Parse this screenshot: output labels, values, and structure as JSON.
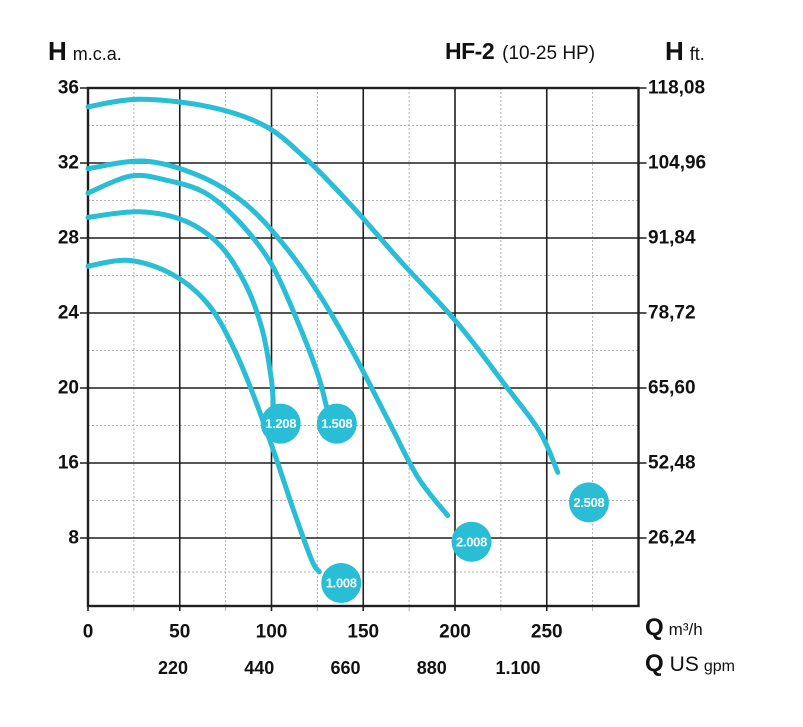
{
  "header": {
    "left_symbol": "H",
    "left_unit": "m.c.a.",
    "title": "HF-2",
    "title_sub": "(10-25 HP)",
    "right_symbol": "H",
    "right_unit": "ft."
  },
  "axes": {
    "head_mca": {
      "symbol": "H",
      "unit": "m.c.a.",
      "ticks": [
        "36",
        "32",
        "28",
        "24",
        "20",
        "16",
        "8"
      ]
    },
    "head_ft": {
      "symbol": "H",
      "unit": "ft.",
      "ticks": [
        "118,08",
        "104,96",
        "91,84",
        "78,72",
        "65,60",
        "52,48",
        "26,24"
      ]
    },
    "flow_m3h": {
      "symbol": "Q",
      "unit": "m³/h",
      "ticks": [
        "0",
        "50",
        "100",
        "150",
        "200",
        "250"
      ]
    },
    "flow_gpm": {
      "symbol": "Q",
      "unit_main": "US",
      "unit_sub": "gpm",
      "ticks": [
        "220",
        "440",
        "660",
        "880",
        "1.100"
      ]
    }
  },
  "chart_data": {
    "type": "line",
    "title": "HF-2 (10-25 HP)",
    "xlabel": "Q m³/h",
    "ylabel": "H m.c.a.",
    "x_range": [
      0,
      300
    ],
    "x_major_step": 50,
    "y_tick_labels": [
      36,
      32,
      28,
      24,
      20,
      16,
      8
    ],
    "grid": "major+minor",
    "legend_position": "badges-on-curves",
    "colors": {
      "curve": "#2abdd6",
      "badge": "#2abdd6",
      "badge_text": "#ffffff",
      "grid_major": "#1f1f1f",
      "grid_minor": "#b3b3b3",
      "text": "#111111"
    },
    "series": [
      {
        "name": "2.508",
        "points": [
          [
            0,
            35.0
          ],
          [
            28,
            35.4
          ],
          [
            66,
            35.0
          ],
          [
            96,
            34.0
          ],
          [
            118,
            32.3
          ],
          [
            143,
            29.8
          ],
          [
            170,
            26.8
          ],
          [
            201,
            23.5
          ],
          [
            227,
            20.2
          ],
          [
            246,
            17.7
          ],
          [
            256,
            15.5
          ]
        ],
        "badge_at": [
          273,
          13.9
        ]
      },
      {
        "name": "2.008",
        "points": [
          [
            0,
            31.7
          ],
          [
            31,
            32.1
          ],
          [
            61,
            31.3
          ],
          [
            86,
            29.8
          ],
          [
            107,
            27.6
          ],
          [
            126,
            25.0
          ],
          [
            145,
            21.8
          ],
          [
            165,
            18.0
          ],
          [
            180,
            15.2
          ],
          [
            196,
            13.2
          ]
        ],
        "badge_at": [
          209,
          11.8
        ]
      },
      {
        "name": "1.508",
        "points": [
          [
            0,
            30.4
          ],
          [
            23,
            31.3
          ],
          [
            42,
            31.1
          ],
          [
            64,
            30.4
          ],
          [
            83,
            28.8
          ],
          [
            100,
            26.6
          ],
          [
            114,
            23.6
          ],
          [
            125,
            20.8
          ],
          [
            130,
            19.0
          ]
        ],
        "badge_at": [
          135.6,
          18.1
        ]
      },
      {
        "name": "1.208",
        "points": [
          [
            0,
            29.1
          ],
          [
            28,
            29.4
          ],
          [
            53,
            28.9
          ],
          [
            72,
            27.6
          ],
          [
            86,
            25.5
          ],
          [
            95,
            23.1
          ],
          [
            100,
            20.4
          ],
          [
            101,
            19.0
          ]
        ],
        "badge_at": [
          105,
          18.1
        ]
      },
      {
        "name": "1.008",
        "points": [
          [
            0,
            26.5
          ],
          [
            23,
            26.8
          ],
          [
            47,
            26.0
          ],
          [
            66,
            24.4
          ],
          [
            80,
            22.0
          ],
          [
            91,
            19.4
          ],
          [
            102,
            16.4
          ],
          [
            113,
            13.2
          ],
          [
            122,
            10.8
          ],
          [
            126,
            10.2
          ]
        ],
        "badge_at": [
          138,
          9.6
        ]
      }
    ]
  }
}
